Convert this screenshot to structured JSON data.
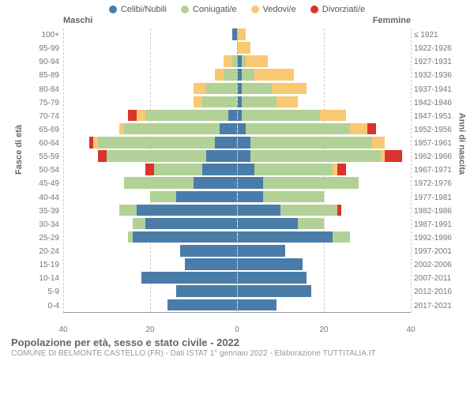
{
  "legend": {
    "items": [
      {
        "label": "Celibi/Nubili",
        "color": "#4a7ca9"
      },
      {
        "label": "Coniugati/e",
        "color": "#b2d197"
      },
      {
        "label": "Vedovi/e",
        "color": "#f9c873"
      },
      {
        "label": "Divorziati/e",
        "color": "#d9342b"
      }
    ]
  },
  "chart": {
    "gender_left": "Maschi",
    "gender_right": "Femmine",
    "xmax": 40,
    "xticks": [
      40,
      20,
      0,
      20,
      40
    ],
    "yaxis_left_title": "Fasce di età",
    "yaxis_right_title": "Anni di nascita",
    "background": "#ffffff",
    "grid_color": "#cccccc",
    "axis_color": "#999999",
    "rows": [
      {
        "age": "100+",
        "birth": "≤ 1921",
        "m": {
          "c": 1,
          "s": 0,
          "v": 0,
          "d": 0
        },
        "f": {
          "c": 0,
          "s": 0,
          "v": 2,
          "d": 0
        }
      },
      {
        "age": "95-99",
        "birth": "1922-1926",
        "m": {
          "c": 0,
          "s": 0,
          "v": 0,
          "d": 0
        },
        "f": {
          "c": 0,
          "s": 0,
          "v": 3,
          "d": 0
        }
      },
      {
        "age": "90-94",
        "birth": "1927-1931",
        "m": {
          "c": 0,
          "s": 1,
          "v": 2,
          "d": 0
        },
        "f": {
          "c": 1,
          "s": 1,
          "v": 5,
          "d": 0
        }
      },
      {
        "age": "85-89",
        "birth": "1932-1936",
        "m": {
          "c": 0,
          "s": 3,
          "v": 2,
          "d": 0
        },
        "f": {
          "c": 1,
          "s": 3,
          "v": 9,
          "d": 0
        }
      },
      {
        "age": "80-84",
        "birth": "1937-1941",
        "m": {
          "c": 0,
          "s": 7,
          "v": 3,
          "d": 0
        },
        "f": {
          "c": 1,
          "s": 7,
          "v": 8,
          "d": 0
        }
      },
      {
        "age": "75-79",
        "birth": "1942-1946",
        "m": {
          "c": 0,
          "s": 8,
          "v": 2,
          "d": 0
        },
        "f": {
          "c": 1,
          "s": 8,
          "v": 5,
          "d": 0
        }
      },
      {
        "age": "70-74",
        "birth": "1947-1951",
        "m": {
          "c": 2,
          "s": 19,
          "v": 2,
          "d": 2
        },
        "f": {
          "c": 1,
          "s": 18,
          "v": 6,
          "d": 0
        }
      },
      {
        "age": "65-69",
        "birth": "1952-1956",
        "m": {
          "c": 4,
          "s": 22,
          "v": 1,
          "d": 0
        },
        "f": {
          "c": 2,
          "s": 24,
          "v": 4,
          "d": 2
        }
      },
      {
        "age": "60-64",
        "birth": "1957-1961",
        "m": {
          "c": 5,
          "s": 27,
          "v": 1,
          "d": 1
        },
        "f": {
          "c": 3,
          "s": 28,
          "v": 3,
          "d": 0
        }
      },
      {
        "age": "55-59",
        "birth": "1962-1966",
        "m": {
          "c": 7,
          "s": 23,
          "v": 0,
          "d": 2
        },
        "f": {
          "c": 3,
          "s": 30,
          "v": 1,
          "d": 4
        }
      },
      {
        "age": "50-54",
        "birth": "1967-1971",
        "m": {
          "c": 8,
          "s": 11,
          "v": 0,
          "d": 2
        },
        "f": {
          "c": 4,
          "s": 18,
          "v": 1,
          "d": 2
        }
      },
      {
        "age": "45-49",
        "birth": "1972-1976",
        "m": {
          "c": 10,
          "s": 16,
          "v": 0,
          "d": 0
        },
        "f": {
          "c": 6,
          "s": 22,
          "v": 0,
          "d": 0
        }
      },
      {
        "age": "40-44",
        "birth": "1977-1981",
        "m": {
          "c": 14,
          "s": 6,
          "v": 0,
          "d": 0
        },
        "f": {
          "c": 6,
          "s": 14,
          "v": 0,
          "d": 0
        }
      },
      {
        "age": "35-39",
        "birth": "1982-1986",
        "m": {
          "c": 23,
          "s": 4,
          "v": 0,
          "d": 0
        },
        "f": {
          "c": 10,
          "s": 13,
          "v": 0,
          "d": 1
        }
      },
      {
        "age": "30-34",
        "birth": "1987-1991",
        "m": {
          "c": 21,
          "s": 3,
          "v": 0,
          "d": 0
        },
        "f": {
          "c": 14,
          "s": 6,
          "v": 0,
          "d": 0
        }
      },
      {
        "age": "25-29",
        "birth": "1992-1996",
        "m": {
          "c": 24,
          "s": 1,
          "v": 0,
          "d": 0
        },
        "f": {
          "c": 22,
          "s": 4,
          "v": 0,
          "d": 0
        }
      },
      {
        "age": "20-24",
        "birth": "1997-2001",
        "m": {
          "c": 13,
          "s": 0,
          "v": 0,
          "d": 0
        },
        "f": {
          "c": 11,
          "s": 0,
          "v": 0,
          "d": 0
        }
      },
      {
        "age": "15-19",
        "birth": "2002-2006",
        "m": {
          "c": 12,
          "s": 0,
          "v": 0,
          "d": 0
        },
        "f": {
          "c": 15,
          "s": 0,
          "v": 0,
          "d": 0
        }
      },
      {
        "age": "10-14",
        "birth": "2007-2011",
        "m": {
          "c": 22,
          "s": 0,
          "v": 0,
          "d": 0
        },
        "f": {
          "c": 16,
          "s": 0,
          "v": 0,
          "d": 0
        }
      },
      {
        "age": "5-9",
        "birth": "2012-2016",
        "m": {
          "c": 14,
          "s": 0,
          "v": 0,
          "d": 0
        },
        "f": {
          "c": 17,
          "s": 0,
          "v": 0,
          "d": 0
        }
      },
      {
        "age": "0-4",
        "birth": "2017-2021",
        "m": {
          "c": 16,
          "s": 0,
          "v": 0,
          "d": 0
        },
        "f": {
          "c": 9,
          "s": 0,
          "v": 0,
          "d": 0
        }
      }
    ]
  },
  "footer": {
    "title": "Popolazione per età, sesso e stato civile - 2022",
    "subtitle": "COMUNE DI BELMONTE CASTELLO (FR) - Dati ISTAT 1° gennaio 2022 - Elaborazione TUTTITALIA.IT"
  }
}
